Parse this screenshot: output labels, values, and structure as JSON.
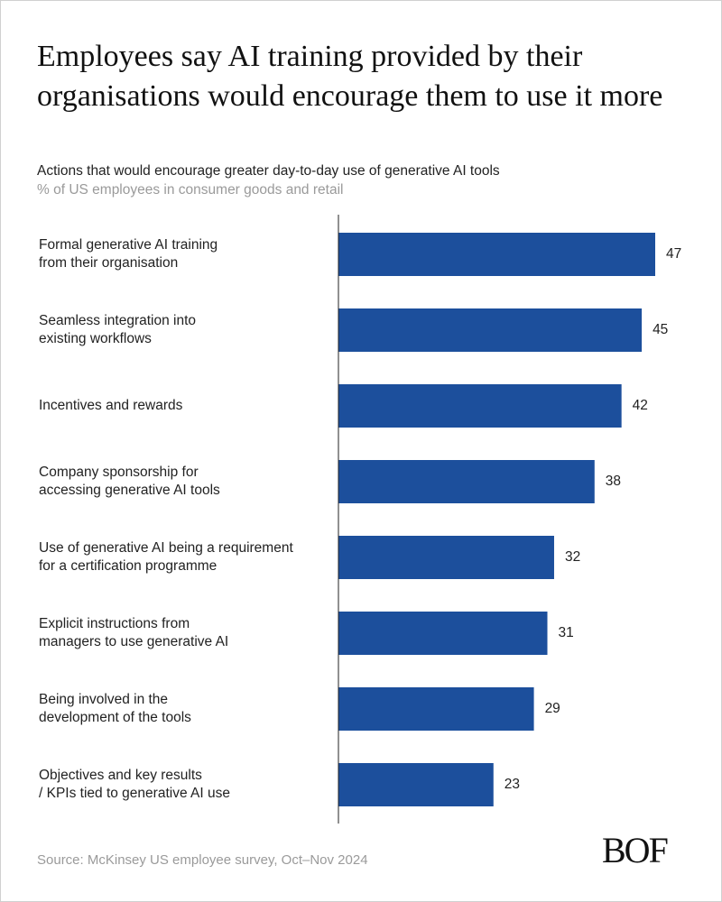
{
  "chart_data": {
    "type": "bar",
    "orientation": "horizontal",
    "title": "Employees say AI training provided by their organisations would encourage them to use it more",
    "subtitle": "Actions that would encourage greater day-to-day use of generative AI tools",
    "note": "% of US employees in consumer goods and retail",
    "categories": [
      [
        "Formal generative AI training",
        "from their organisation"
      ],
      [
        "Seamless integration into",
        "existing workflows"
      ],
      [
        "Incentives and rewards"
      ],
      [
        "Company sponsorship for",
        "accessing generative AI tools"
      ],
      [
        "Use of generative AI being a requirement",
        "for a certification programme"
      ],
      [
        "Explicit instructions from",
        "managers to use generative AI"
      ],
      [
        "Being involved in the",
        "development of the tools"
      ],
      [
        "Objectives and key results",
        "/ KPIs tied to generative AI use"
      ]
    ],
    "values": [
      47,
      45,
      42,
      38,
      32,
      31,
      29,
      23
    ],
    "color": "#1c4f9c",
    "source": "Source: McKinsey US employee survey, Oct–Nov 2024",
    "logo": "BOF"
  }
}
